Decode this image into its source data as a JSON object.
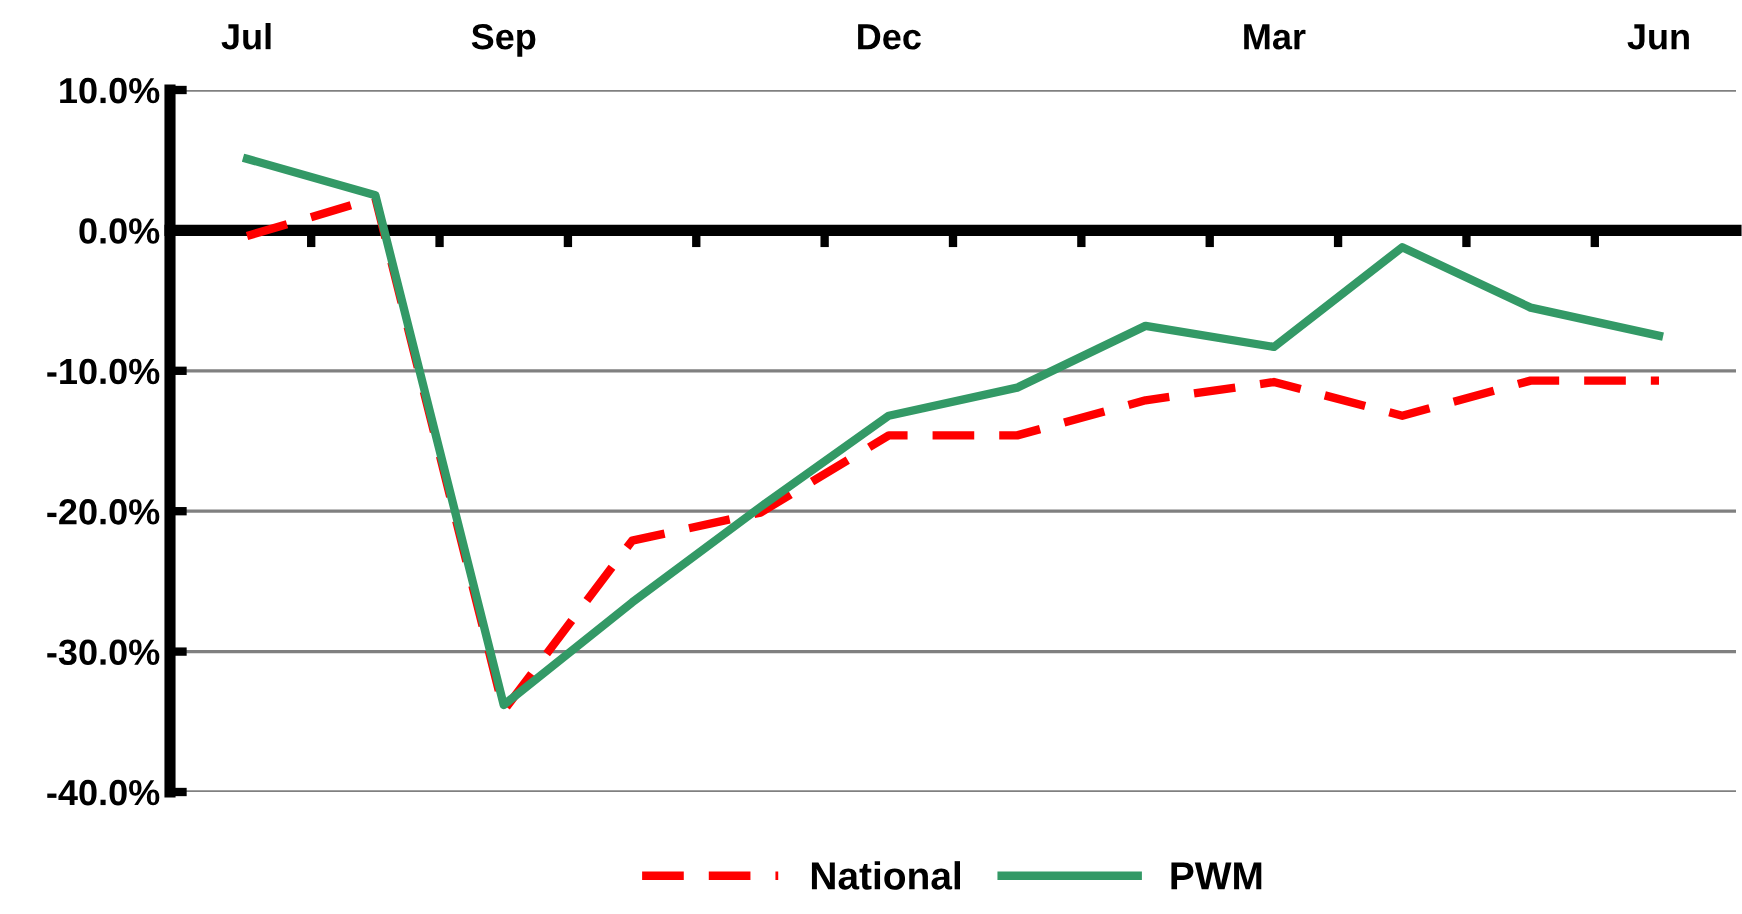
{
  "chart_data": {
    "type": "line",
    "categories": [
      "Jul",
      null,
      "Sep",
      null,
      null,
      "Dec",
      null,
      null,
      "Mar",
      null,
      null,
      "Jun"
    ],
    "series": [
      {
        "name": "National",
        "color": "#ff0000",
        "line_style": "dashed",
        "values": [
          -0.4,
          2.3,
          -34.2,
          -22.1,
          -20.1,
          -14.6,
          -14.6,
          -12.1,
          -10.8,
          -13.2,
          -10.7,
          -10.7
        ]
      },
      {
        "name": "PWM",
        "color": "#339966",
        "line_style": "solid",
        "values": [
          5.1,
          2.5,
          -33.8,
          -26.5,
          -19.7,
          -13.2,
          -11.2,
          -6.8,
          -8.3,
          -1.2,
          -5.5,
          -7.5
        ]
      }
    ],
    "ylim": [
      -40,
      10
    ],
    "yticks": [
      {
        "value": -40,
        "label": "-40.0%"
      },
      {
        "value": -30,
        "label": "-30.0%"
      },
      {
        "value": -20,
        "label": "-20.0%"
      },
      {
        "value": -10,
        "label": "-10.0%"
      },
      {
        "value": 0,
        "label": "0.0%"
      },
      {
        "value": 10,
        "label": "10.0%"
      }
    ],
    "grid": "y",
    "legend": "bottom",
    "marker": "none"
  }
}
